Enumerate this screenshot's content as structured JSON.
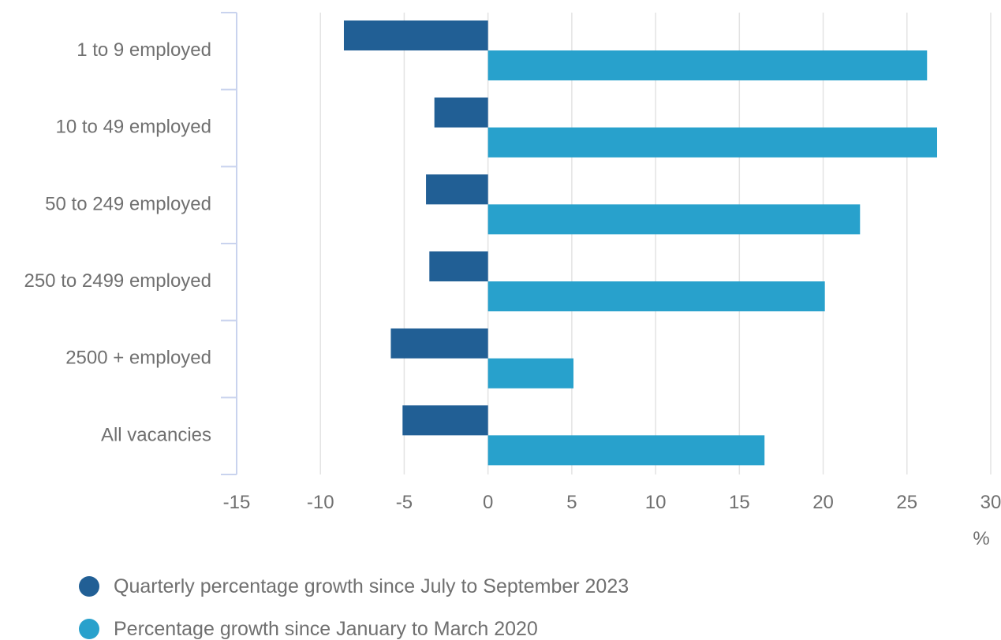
{
  "chart_data": {
    "type": "bar",
    "orientation": "horizontal",
    "categories": [
      "1 to 9 employed",
      "10 to 49 employed",
      "50 to 249 employed",
      "250 to 2499 employed",
      "2500 + employed",
      "All vacancies"
    ],
    "series": [
      {
        "name": "Quarterly percentage growth since July to September 2023",
        "color": "#215f95",
        "values": [
          -8.6,
          -3.2,
          -3.7,
          -3.5,
          -5.8,
          -5.1
        ]
      },
      {
        "name": "Percentage growth since January to March 2020",
        "color": "#28a1cc",
        "values": [
          26.2,
          26.8,
          22.2,
          20.1,
          5.1,
          16.5
        ]
      }
    ],
    "x_ticks": [
      "-15",
      "-10",
      "-5",
      "0",
      "5",
      "10",
      "15",
      "20",
      "25",
      "30"
    ],
    "xlim": [
      -15,
      30
    ],
    "unit_label": "%",
    "grid": "vertical",
    "legend_position": "bottom-left",
    "colors": {
      "grid": "#e3e3e3",
      "axis": "#c9d3ee",
      "text": "#707070"
    }
  }
}
